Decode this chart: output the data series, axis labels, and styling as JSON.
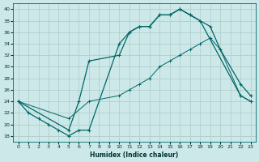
{
  "xlabel": "Humidex (Indice chaleur)",
  "bg_color": "#cde8e8",
  "grid_color": "#b0d0cc",
  "line_color": "#006666",
  "xlim": [
    -0.5,
    23.5
  ],
  "ylim": [
    17,
    41
  ],
  "xticks": [
    0,
    1,
    2,
    3,
    4,
    5,
    6,
    7,
    8,
    9,
    10,
    11,
    12,
    13,
    14,
    15,
    16,
    17,
    18,
    19,
    20,
    21,
    22,
    23
  ],
  "yticks": [
    18,
    20,
    22,
    24,
    26,
    28,
    30,
    32,
    34,
    36,
    38,
    40
  ],
  "line1_x": [
    0,
    1,
    2,
    3,
    4,
    5,
    6,
    7,
    10,
    11,
    12,
    13,
    14,
    15,
    16,
    17,
    18,
    22,
    23
  ],
  "line1_y": [
    24,
    22,
    21,
    20,
    19,
    18,
    19,
    19,
    34,
    36,
    37,
    37,
    39,
    39,
    40,
    39,
    38,
    25,
    24
  ],
  "line2_x": [
    0,
    5,
    6,
    7,
    10,
    11,
    12,
    13,
    14,
    15,
    16,
    17,
    19,
    20,
    22,
    23
  ],
  "line2_y": [
    24,
    19,
    24,
    31,
    32,
    36,
    37,
    37,
    39,
    39,
    40,
    39,
    37,
    33,
    27,
    25
  ],
  "line3_x": [
    0,
    5,
    7,
    10,
    11,
    12,
    13,
    14,
    15,
    16,
    17,
    18,
    19,
    20,
    22,
    23
  ],
  "line3_y": [
    24,
    21,
    24,
    25,
    26,
    27,
    28,
    30,
    31,
    32,
    33,
    34,
    35,
    33,
    25,
    24
  ]
}
